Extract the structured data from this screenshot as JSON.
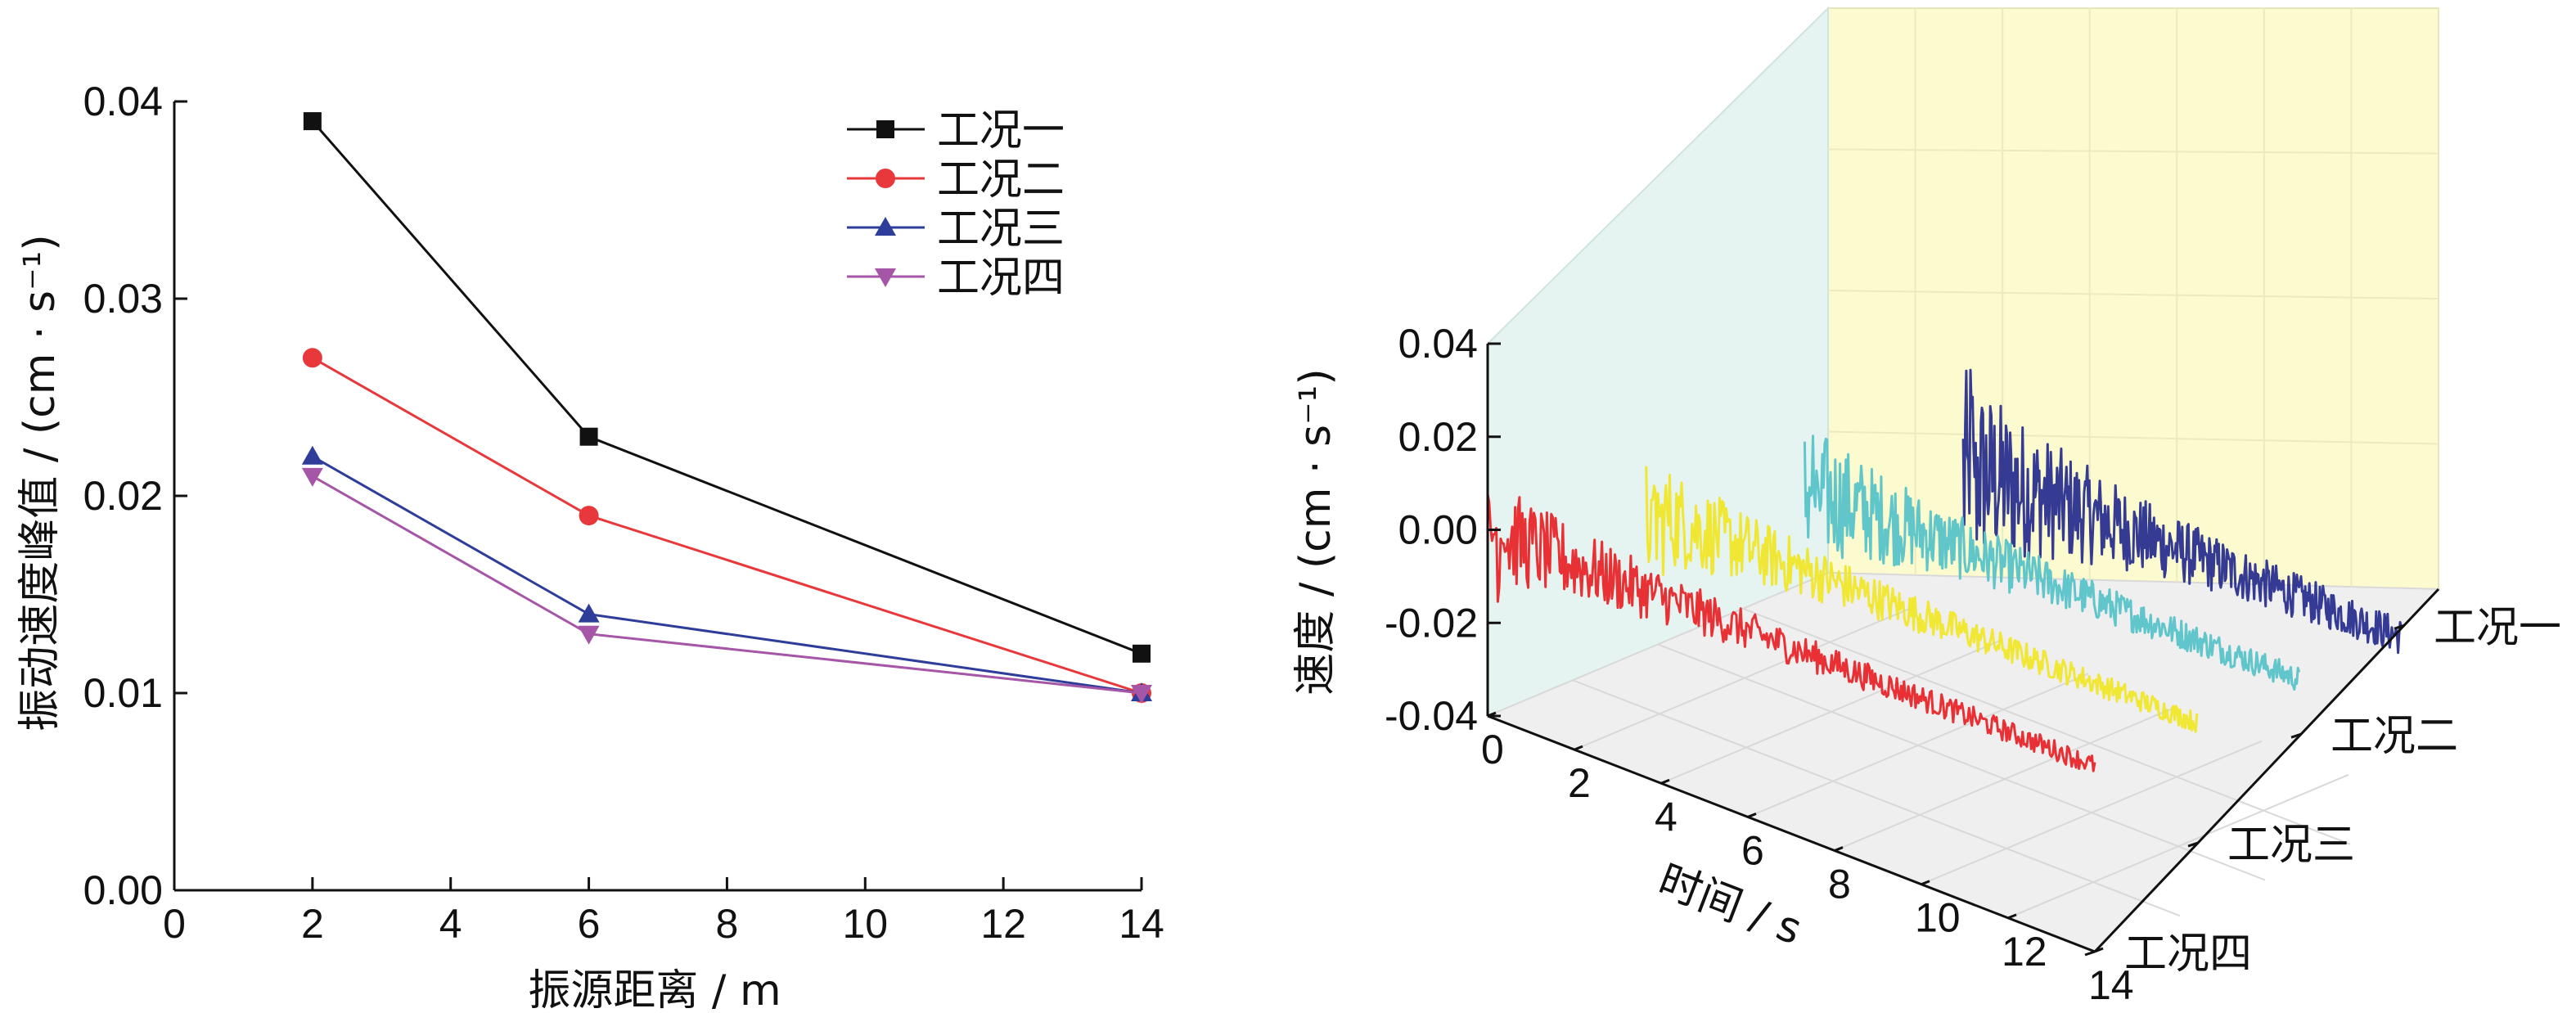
{
  "chart_data": [
    {
      "type": "line",
      "xlabel": "振源距离 / m",
      "ylabel": "振动速度峰值 / (cm · s⁻¹)",
      "xlim": [
        0,
        14
      ],
      "ylim": [
        0,
        0.04
      ],
      "xticks": [
        "0",
        "2",
        "4",
        "6",
        "8",
        "10",
        "12",
        "14"
      ],
      "yticks": [
        "0.00",
        "0.01",
        "0.02",
        "0.03",
        "0.04"
      ],
      "grid": false,
      "legend_position": "top-right",
      "x": [
        2,
        6,
        14
      ],
      "series": [
        {
          "name": "工况一",
          "values": [
            0.039,
            0.023,
            0.012
          ],
          "color": "#111111",
          "marker": "square"
        },
        {
          "name": "工况二",
          "values": [
            0.027,
            0.019,
            0.01
          ],
          "color": "#e8383b",
          "marker": "circle"
        },
        {
          "name": "工况三",
          "values": [
            0.022,
            0.014,
            0.01
          ],
          "color": "#2e3d99",
          "marker": "triangle-up"
        },
        {
          "name": "工况四",
          "values": [
            0.021,
            0.013,
            0.01
          ],
          "color": "#a656a6",
          "marker": "triangle-down"
        }
      ]
    },
    {
      "type": "line",
      "projection": "3d-waterfall",
      "xlabel": "时间 / s",
      "ylabel": "速度 / (cm · s⁻¹)",
      "xlim": [
        0,
        14
      ],
      "zlim": [
        -0.04,
        0.04
      ],
      "xticks": [
        "0",
        "2",
        "4",
        "6",
        "8",
        "10",
        "12",
        "14"
      ],
      "zticks": [
        "0.04",
        "0.02",
        "0.00",
        "-0.02",
        "-0.04"
      ],
      "depth_categories": [
        "工况一",
        "工况二",
        "工况三",
        "工况四"
      ],
      "series": [
        {
          "name": "工况一",
          "color": "#2a2f8f",
          "peak": 0.039,
          "start": 3.9,
          "end": 14
        },
        {
          "name": "工况二",
          "color": "#57c3c8",
          "peak": 0.027,
          "start": 2.6,
          "end": 14
        },
        {
          "name": "工况三",
          "color": "#f0e62a",
          "peak": 0.022,
          "start": 1.3,
          "end": 14
        },
        {
          "name": "工况四",
          "color": "#e8262a",
          "peak": 0.021,
          "start": 0,
          "end": 14
        }
      ]
    }
  ]
}
